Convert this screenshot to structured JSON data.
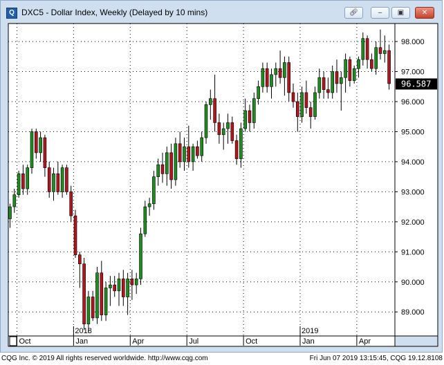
{
  "window": {
    "title": "DXC5 - Dollar Index, Weekly (Delayed by 10 mins)",
    "icon": "cqg-app-icon",
    "buttons": [
      "link-icon",
      "minimize-icon",
      "restore-icon",
      "close-icon"
    ]
  },
  "footer": {
    "copyright": "CQG Inc. © 2019 All rights reserved worldwide. http://www.cqg.com",
    "timestamp": "Fri Jun 07 2019 13:15:45, CQG 19.12.8108"
  },
  "chart_data": {
    "type": "candlestick",
    "symbol": "DXC5",
    "ylim": [
      88.2,
      98.6
    ],
    "y_ticks": [
      "98.000",
      "97.000",
      "96.000",
      "95.000",
      "94.000",
      "93.000",
      "92.000",
      "91.000",
      "90.000",
      "89.000"
    ],
    "y_tick_values": [
      98,
      97,
      96,
      95,
      94,
      93,
      92,
      91,
      90,
      89
    ],
    "last_price": "96.587",
    "last_price_value": 96.587,
    "x_tick_labels": [
      "Oct",
      "Jan",
      "Apr",
      "Jul",
      "Oct",
      "Jan",
      "Apr"
    ],
    "x_tick_weeks": [
      0,
      13,
      26,
      39,
      52,
      65,
      78
    ],
    "year_labels": [
      "2018",
      "2019"
    ],
    "year_weeks": [
      13,
      65
    ],
    "grid": true,
    "up_color": "#1e8c1e",
    "down_color": "#b0161e",
    "candles": [
      [
        92.1,
        92.6,
        91.8,
        92.5
      ],
      [
        92.5,
        93.1,
        92.3,
        92.9
      ],
      [
        92.9,
        93.7,
        92.8,
        93.6
      ],
      [
        93.6,
        93.9,
        92.9,
        93.1
      ],
      [
        93.1,
        93.9,
        92.9,
        93.8
      ],
      [
        93.8,
        95.1,
        93.6,
        95.0
      ],
      [
        95.0,
        95.1,
        94.1,
        94.3
      ],
      [
        94.3,
        95.0,
        94.0,
        94.8
      ],
      [
        94.8,
        94.9,
        93.5,
        93.8
      ],
      [
        93.8,
        94.0,
        92.8,
        93.0
      ],
      [
        93.0,
        93.8,
        92.7,
        93.6
      ],
      [
        93.6,
        94.0,
        92.9,
        93.0
      ],
      [
        93.0,
        93.9,
        92.8,
        93.8
      ],
      [
        93.8,
        93.9,
        92.9,
        93.0
      ],
      [
        93.0,
        93.2,
        92.0,
        92.2
      ],
      [
        92.2,
        92.4,
        90.8,
        90.9
      ],
      [
        90.9,
        91.0,
        89.8,
        90.6
      ],
      [
        90.6,
        90.8,
        88.4,
        88.6
      ],
      [
        88.6,
        89.7,
        88.3,
        89.5
      ],
      [
        89.5,
        89.7,
        88.7,
        88.8
      ],
      [
        88.8,
        90.5,
        88.6,
        90.3
      ],
      [
        90.3,
        90.7,
        88.7,
        88.9
      ],
      [
        88.9,
        90.0,
        88.7,
        89.8
      ],
      [
        89.8,
        90.2,
        89.2,
        89.9
      ],
      [
        89.9,
        90.2,
        89.5,
        89.7
      ],
      [
        89.7,
        90.3,
        89.2,
        90.1
      ],
      [
        90.1,
        90.4,
        89.2,
        89.5
      ],
      [
        89.5,
        90.3,
        88.9,
        90.1
      ],
      [
        90.1,
        90.4,
        89.4,
        89.9
      ],
      [
        89.9,
        90.3,
        89.6,
        90.1
      ],
      [
        90.1,
        91.8,
        89.9,
        91.6
      ],
      [
        91.6,
        92.7,
        91.5,
        92.5
      ],
      [
        92.5,
        92.8,
        92.2,
        92.6
      ],
      [
        92.6,
        93.7,
        92.4,
        93.5
      ],
      [
        93.5,
        94.1,
        93.2,
        93.9
      ],
      [
        93.9,
        94.3,
        93.3,
        93.6
      ],
      [
        93.6,
        94.5,
        93.2,
        94.3
      ],
      [
        94.3,
        94.6,
        93.1,
        93.4
      ],
      [
        93.4,
        94.8,
        93.2,
        94.6
      ],
      [
        94.6,
        95.0,
        93.8,
        94.0
      ],
      [
        94.0,
        94.8,
        93.7,
        94.5
      ],
      [
        94.5,
        95.2,
        93.8,
        94.0
      ],
      [
        94.0,
        94.6,
        93.7,
        94.5
      ],
      [
        94.5,
        94.7,
        94.1,
        94.2
      ],
      [
        94.2,
        95.0,
        94.0,
        94.8
      ],
      [
        94.8,
        96.0,
        94.6,
        95.9
      ],
      [
        95.9,
        96.4,
        95.4,
        96.1
      ],
      [
        96.1,
        96.9,
        95.0,
        95.3
      ],
      [
        95.3,
        95.6,
        94.6,
        94.9
      ],
      [
        94.9,
        95.3,
        94.4,
        95.1
      ],
      [
        95.1,
        95.6,
        94.6,
        95.3
      ],
      [
        95.3,
        95.5,
        94.6,
        94.7
      ],
      [
        94.7,
        94.9,
        93.9,
        94.1
      ],
      [
        94.1,
        95.3,
        93.8,
        95.1
      ],
      [
        95.1,
        96.1,
        95.0,
        95.7
      ],
      [
        95.7,
        95.9,
        95.0,
        95.3
      ],
      [
        95.3,
        96.3,
        95.1,
        96.1
      ],
      [
        96.1,
        96.7,
        95.9,
        96.5
      ],
      [
        96.5,
        97.3,
        96.3,
        97.1
      ],
      [
        97.1,
        97.3,
        96.3,
        96.5
      ],
      [
        96.5,
        97.1,
        96.1,
        96.9
      ],
      [
        96.9,
        97.3,
        96.5,
        97.1
      ],
      [
        97.1,
        97.7,
        96.6,
        96.8
      ],
      [
        96.8,
        97.5,
        96.2,
        97.3
      ],
      [
        97.3,
        97.5,
        96.0,
        96.3
      ],
      [
        96.3,
        96.6,
        95.8,
        96.0
      ],
      [
        96.0,
        96.3,
        95.0,
        95.5
      ],
      [
        95.5,
        96.5,
        95.3,
        96.3
      ],
      [
        96.3,
        96.7,
        95.6,
        95.8
      ],
      [
        95.8,
        96.0,
        95.1,
        95.5
      ],
      [
        95.5,
        96.5,
        95.4,
        96.3
      ],
      [
        96.3,
        97.1,
        96.1,
        96.8
      ],
      [
        96.8,
        97.0,
        96.1,
        96.4
      ],
      [
        96.4,
        96.8,
        96.1,
        96.3
      ],
      [
        96.3,
        97.2,
        96.1,
        97.0
      ],
      [
        97.0,
        97.4,
        96.3,
        96.6
      ],
      [
        96.6,
        97.0,
        95.7,
        96.8
      ],
      [
        96.8,
        97.6,
        96.3,
        97.4
      ],
      [
        97.4,
        97.5,
        96.5,
        96.7
      ],
      [
        96.7,
        97.2,
        96.6,
        97.1
      ],
      [
        97.1,
        97.5,
        96.8,
        97.4
      ],
      [
        97.4,
        98.3,
        97.2,
        98.1
      ],
      [
        98.1,
        98.2,
        97.1,
        97.4
      ],
      [
        97.4,
        97.6,
        97.0,
        97.1
      ],
      [
        97.1,
        98.0,
        96.9,
        97.8
      ],
      [
        97.8,
        98.4,
        97.4,
        97.6
      ],
      [
        97.6,
        98.2,
        97.3,
        97.7
      ],
      [
        97.7,
        97.9,
        96.4,
        96.6
      ]
    ]
  }
}
